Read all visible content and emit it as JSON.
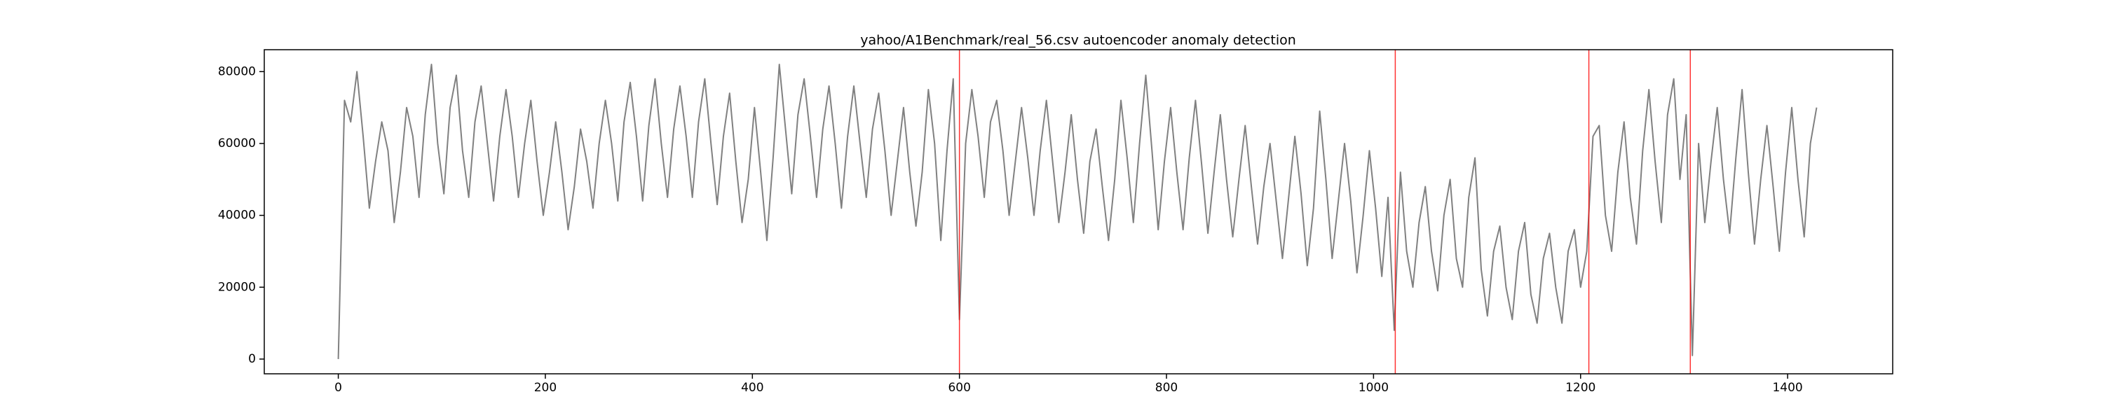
{
  "chart_data": {
    "type": "line",
    "title": "yahoo/A1Benchmark/real_56.csv autoencoder anomaly detection",
    "x": [
      0,
      6,
      12,
      18,
      24,
      30,
      36,
      42,
      48,
      54,
      60,
      66,
      72,
      78,
      84,
      90,
      96,
      102,
      108,
      114,
      120,
      126,
      132,
      138,
      144,
      150,
      156,
      162,
      168,
      174,
      180,
      186,
      192,
      198,
      204,
      210,
      216,
      222,
      228,
      234,
      240,
      246,
      252,
      258,
      264,
      270,
      276,
      282,
      288,
      294,
      300,
      306,
      312,
      318,
      324,
      330,
      336,
      342,
      348,
      354,
      360,
      366,
      372,
      378,
      384,
      390,
      396,
      402,
      408,
      414,
      420,
      426,
      432,
      438,
      444,
      450,
      456,
      462,
      468,
      474,
      480,
      486,
      492,
      498,
      504,
      510,
      516,
      522,
      528,
      534,
      540,
      546,
      552,
      558,
      564,
      570,
      576,
      582,
      588,
      594,
      600,
      606,
      612,
      618,
      624,
      630,
      636,
      642,
      648,
      654,
      660,
      666,
      672,
      678,
      684,
      690,
      696,
      702,
      708,
      714,
      720,
      726,
      732,
      738,
      744,
      750,
      756,
      762,
      768,
      774,
      780,
      786,
      792,
      798,
      804,
      810,
      816,
      822,
      828,
      834,
      840,
      846,
      852,
      858,
      864,
      870,
      876,
      882,
      888,
      894,
      900,
      906,
      912,
      918,
      924,
      930,
      936,
      942,
      948,
      954,
      960,
      966,
      972,
      978,
      984,
      990,
      996,
      1002,
      1008,
      1014,
      1020,
      1026,
      1032,
      1038,
      1044,
      1050,
      1056,
      1062,
      1068,
      1074,
      1080,
      1086,
      1092,
      1098,
      1104,
      1110,
      1116,
      1122,
      1128,
      1134,
      1140,
      1146,
      1152,
      1158,
      1164,
      1170,
      1176,
      1182,
      1188,
      1194,
      1200,
      1206,
      1212,
      1218,
      1224,
      1230,
      1236,
      1242,
      1248,
      1254,
      1260,
      1266,
      1272,
      1278,
      1284,
      1290,
      1296,
      1302,
      1308,
      1314,
      1320,
      1326,
      1332,
      1338,
      1344,
      1350,
      1356,
      1362,
      1368,
      1374,
      1380,
      1386,
      1392,
      1398,
      1404,
      1410,
      1416,
      1422,
      1428
    ],
    "series": [
      {
        "color": "#808080",
        "values": [
          0,
          72000,
          66000,
          80000,
          62000,
          42000,
          55000,
          66000,
          58000,
          38000,
          52000,
          70000,
          62000,
          45000,
          68000,
          82000,
          60000,
          46000,
          70000,
          79000,
          58000,
          45000,
          66000,
          76000,
          60000,
          44000,
          62000,
          75000,
          62000,
          45000,
          60000,
          72000,
          55000,
          40000,
          52000,
          66000,
          52000,
          36000,
          48000,
          64000,
          55000,
          42000,
          60000,
          72000,
          60000,
          44000,
          66000,
          77000,
          62000,
          44000,
          65000,
          78000,
          60000,
          45000,
          64000,
          76000,
          62000,
          45000,
          66000,
          78000,
          60000,
          43000,
          62000,
          74000,
          55000,
          38000,
          50000,
          70000,
          52000,
          33000,
          56000,
          82000,
          64000,
          46000,
          68000,
          78000,
          62000,
          45000,
          64000,
          76000,
          60000,
          42000,
          62000,
          76000,
          60000,
          45000,
          64000,
          74000,
          58000,
          40000,
          55000,
          70000,
          52000,
          37000,
          52000,
          75000,
          60000,
          33000,
          58000,
          78000,
          11000,
          60000,
          75000,
          62000,
          45000,
          66000,
          72000,
          58000,
          40000,
          55000,
          70000,
          56000,
          40000,
          58000,
          72000,
          55000,
          38000,
          52000,
          68000,
          50000,
          35000,
          55000,
          64000,
          48000,
          33000,
          50000,
          72000,
          56000,
          38000,
          60000,
          79000,
          58000,
          36000,
          55000,
          70000,
          52000,
          36000,
          56000,
          72000,
          54000,
          35000,
          52000,
          68000,
          50000,
          34000,
          50000,
          65000,
          48000,
          32000,
          48000,
          60000,
          44000,
          28000,
          45000,
          62000,
          46000,
          26000,
          42000,
          69000,
          50000,
          28000,
          44000,
          60000,
          44000,
          24000,
          40000,
          58000,
          42000,
          23000,
          45000,
          8000,
          52000,
          30000,
          20000,
          38000,
          48000,
          30000,
          19000,
          40000,
          50000,
          28000,
          20000,
          45000,
          56000,
          25000,
          12000,
          30000,
          37000,
          20000,
          11000,
          30000,
          38000,
          18000,
          10000,
          28000,
          35000,
          20000,
          10000,
          30000,
          36000,
          20000,
          30000,
          62000,
          65000,
          40000,
          30000,
          52000,
          66000,
          45000,
          32000,
          58000,
          75000,
          55000,
          38000,
          68000,
          78000,
          50000,
          68000,
          1000,
          60000,
          38000,
          55000,
          70000,
          50000,
          35000,
          56000,
          75000,
          52000,
          32000,
          50000,
          65000,
          48000,
          30000,
          52000,
          70000,
          50000,
          34000,
          60000,
          70000
        ]
      }
    ],
    "anomalies": {
      "color": "#ff0000",
      "values": [
        600,
        1021,
        1208,
        1306
      ]
    },
    "xlim": [
      -71.5,
      1501.5
    ],
    "xticks": [
      0,
      200,
      400,
      600,
      800,
      1000,
      1200,
      1400
    ],
    "ylim": [
      -4100,
      86100
    ],
    "yticks": [
      0,
      20000,
      40000,
      60000,
      80000
    ]
  }
}
